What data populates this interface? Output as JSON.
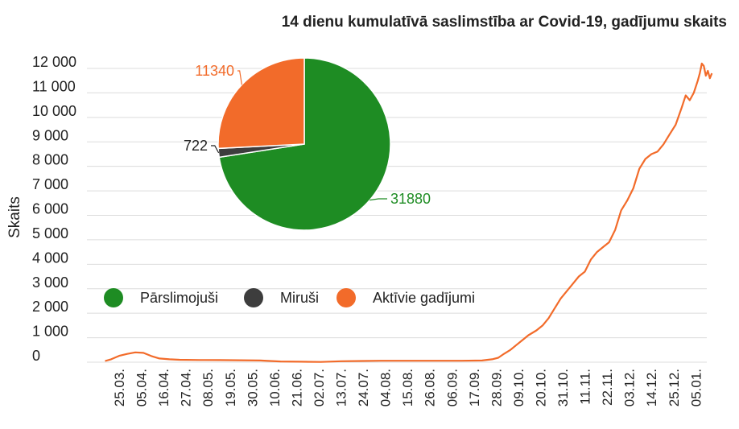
{
  "chart_data": [
    {
      "type": "line",
      "title": "14 dienu kumulatīvā saslimstība ar Covid-19, gadījumu skaits",
      "ylabel": "Skaits",
      "xlabel": "",
      "ylim": [
        0,
        12000
      ],
      "yticks": [
        0,
        1000,
        2000,
        3000,
        4000,
        5000,
        6000,
        7000,
        8000,
        9000,
        10000,
        11000,
        12000
      ],
      "ytick_labels": [
        "0",
        "1 000",
        "2 000",
        "3 000",
        "4 000",
        "5 000",
        "6 000",
        "7 000",
        "8 000",
        "9 000",
        "10 000",
        "11 000",
        "12 000"
      ],
      "x_labels": [
        "25.03.",
        "05.04.",
        "16.04.",
        "27.04.",
        "08.05.",
        "19.05.",
        "30.05.",
        "10.06.",
        "21.06.",
        "02.07.",
        "13.07.",
        "24.07.",
        "04.08.",
        "15.08.",
        "26.08.",
        "06.09.",
        "17.09.",
        "28.09.",
        "09.10.",
        "20.10.",
        "31.10.",
        "11.11.",
        "22.11.",
        "03.12.",
        "14.12.",
        "25.12.",
        "05.01."
      ],
      "grid": true,
      "line_color": "#f26b2a",
      "series": [
        {
          "name": "Aktīvie gadījumi",
          "points": [
            [
              -7,
              50
            ],
            [
              -4,
              120
            ],
            [
              0,
              260
            ],
            [
              4,
              340
            ],
            [
              8,
              400
            ],
            [
              12,
              380
            ],
            [
              16,
              250
            ],
            [
              20,
              150
            ],
            [
              25,
              120
            ],
            [
              30,
              100
            ],
            [
              40,
              90
            ],
            [
              50,
              85
            ],
            [
              60,
              80
            ],
            [
              70,
              70
            ],
            [
              80,
              30
            ],
            [
              90,
              20
            ],
            [
              100,
              10
            ],
            [
              110,
              40
            ],
            [
              120,
              50
            ],
            [
              130,
              60
            ],
            [
              140,
              60
            ],
            [
              150,
              60
            ],
            [
              160,
              60
            ],
            [
              170,
              60
            ],
            [
              180,
              70
            ],
            [
              185,
              120
            ],
            [
              188,
              180
            ],
            [
              191,
              350
            ],
            [
              194,
              500
            ],
            [
              197,
              700
            ],
            [
              200,
              900
            ],
            [
              203,
              1100
            ],
            [
              207,
              1300
            ],
            [
              210,
              1500
            ],
            [
              213,
              1800
            ],
            [
              216,
              2200
            ],
            [
              219,
              2600
            ],
            [
              222,
              2900
            ],
            [
              225,
              3200
            ],
            [
              228,
              3500
            ],
            [
              231,
              3700
            ],
            [
              234,
              4200
            ],
            [
              237,
              4500
            ],
            [
              240,
              4700
            ],
            [
              243,
              4900
            ],
            [
              246,
              5400
            ],
            [
              249,
              6200
            ],
            [
              252,
              6600
            ],
            [
              255,
              7100
            ],
            [
              258,
              7900
            ],
            [
              261,
              8300
            ],
            [
              264,
              8500
            ],
            [
              267,
              8600
            ],
            [
              270,
              8900
            ],
            [
              273,
              9300
            ],
            [
              276,
              9700
            ],
            [
              279,
              10400
            ],
            [
              281,
              10900
            ],
            [
              283,
              10700
            ],
            [
              285,
              11000
            ],
            [
              287,
              11500
            ],
            [
              288,
              11800
            ],
            [
              289,
              12200
            ],
            [
              290,
              12100
            ],
            [
              291,
              11700
            ],
            [
              292,
              11900
            ],
            [
              293,
              11600
            ],
            [
              294,
              11800
            ]
          ]
        }
      ],
      "x_unit": "days since 25.03."
    },
    {
      "type": "pie",
      "slices": [
        {
          "label": "Pārslimojuši",
          "value": 31880,
          "color": "#1e8c23"
        },
        {
          "label": "Miruši",
          "value": 722,
          "color": "#3d3d3d"
        },
        {
          "label": "Aktīvie gadījumi",
          "value": 11340,
          "color": "#f26b2a"
        }
      ],
      "data_labels": [
        "31880",
        "722",
        "11340"
      ]
    }
  ],
  "legend": {
    "position": "bottom-left",
    "items": [
      {
        "label": "Pārslimojuši",
        "color": "#1e8c23"
      },
      {
        "label": "Miruši",
        "color": "#3d3d3d"
      },
      {
        "label": "Aktīvie gadījumi",
        "color": "#f26b2a"
      }
    ]
  }
}
